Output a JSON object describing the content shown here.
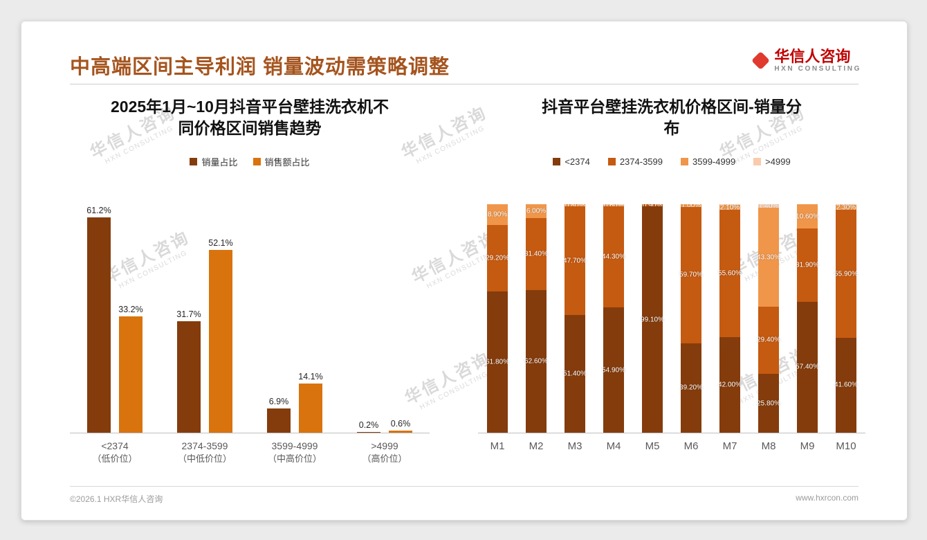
{
  "slide": {
    "title": "中高端区间主导利润 销量波动需策略调整",
    "footer_left": "©2026.1 HXR华信人咨询",
    "footer_right": "www.hxrcon.com"
  },
  "logo": {
    "name": "华信人咨询",
    "subtitle": "HXN CONSULTING"
  },
  "watermark": {
    "line1": "华信人咨询",
    "line2": "HXN CONSULTING"
  },
  "colors": {
    "accent_title": "#A5541E",
    "dark_brown": "#843C0C",
    "orange": "#D9730D",
    "mid_orange": "#C55A11",
    "light_orange": "#F0964A",
    "peach": "#F8CBAD"
  },
  "chart_data": [
    {
      "type": "bar",
      "stacked": false,
      "title": "2025年1月~10月抖音平台壁挂洗衣机不同价格区间销售趋势",
      "categories": [
        "<2374",
        "2374-3599",
        "3599-4999",
        ">4999"
      ],
      "category_sublabels": [
        "（低价位）",
        "（中低价位）",
        "（中高价位）",
        "（高价位）"
      ],
      "series": [
        {
          "name": "销量占比",
          "color": "#843C0C",
          "values": [
            61.2,
            31.7,
            6.9,
            0.2
          ]
        },
        {
          "name": "销售额占比",
          "color": "#D9730D",
          "values": [
            33.2,
            52.1,
            14.1,
            0.6
          ]
        }
      ],
      "ylim": [
        0,
        65
      ],
      "label_decimals": 1,
      "value_suffix": "%",
      "legend_position": "top",
      "grid": false
    },
    {
      "type": "bar",
      "stacked": true,
      "title": "抖音平台壁挂洗衣机价格区间-销量分布",
      "categories": [
        "M1",
        "M2",
        "M3",
        "M4",
        "M5",
        "M6",
        "M7",
        "M8",
        "M9",
        "M10"
      ],
      "series": [
        {
          "name": "<2374",
          "color": "#843C0C",
          "values": [
            61.8,
            62.6,
            51.4,
            54.9,
            99.1,
            39.2,
            42.0,
            25.8,
            57.4,
            41.6
          ]
        },
        {
          "name": "2374-3599",
          "color": "#C55A11",
          "values": [
            29.2,
            31.4,
            47.7,
            44.3,
            0.9,
            59.7,
            55.6,
            29.4,
            31.9,
            55.9
          ]
        },
        {
          "name": "3599-4999",
          "color": "#F0964A",
          "values": [
            8.9,
            6.0,
            0.8,
            0.6,
            0.0,
            1.0,
            2.1,
            43.3,
            10.6,
            2.3
          ]
        },
        {
          "name": ">4999",
          "color": "#F8CBAD",
          "values": [
            0.1,
            0.0,
            0.1,
            0.2,
            0.0,
            0.1,
            0.3,
            1.4,
            0.1,
            0.2
          ]
        }
      ],
      "ylim": [
        0,
        100
      ],
      "label_decimals": 2,
      "value_suffix": "%",
      "legend_position": "top",
      "grid": false
    }
  ]
}
